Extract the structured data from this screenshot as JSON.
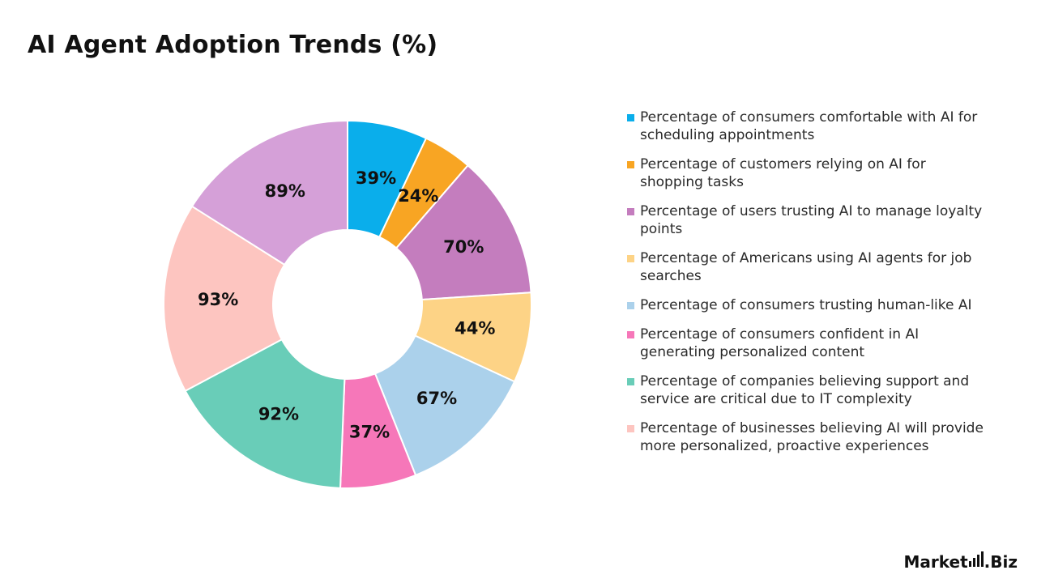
{
  "chart_data": {
    "type": "pie",
    "title": "AI Agent Adoption Trends (%)",
    "donut": true,
    "legend_position": "right",
    "categories": [
      "Percentage of consumers comfortable with AI for scheduling appointments",
      "Percentage of customers relying on AI for shopping tasks",
      "Percentage of users trusting AI to manage loyalty points",
      "Percentage of Americans using AI agents for job searches",
      "Percentage of consumers trusting human-like AI",
      "Percentage of consumers confident in AI generating personalized content",
      "Percentage of companies believing support and service are critical due to IT complexity",
      "Percentage of businesses believing AI will provide more personalized, proactive experiences",
      ""
    ],
    "values": [
      39,
      24,
      70,
      44,
      67,
      37,
      92,
      93,
      89
    ],
    "labels": [
      "39%",
      "24%",
      "70%",
      "44%",
      "67%",
      "37%",
      "92%",
      "93%",
      "89%"
    ],
    "colors": [
      "#0AAEEB",
      "#F8A523",
      "#C47DBE",
      "#FDD386",
      "#ABD1EB",
      "#F677B9",
      "#69CDB8",
      "#FDC5C0",
      "#D5A0D8"
    ]
  },
  "brand": {
    "text_a": "Market",
    "text_b": ".Biz"
  }
}
